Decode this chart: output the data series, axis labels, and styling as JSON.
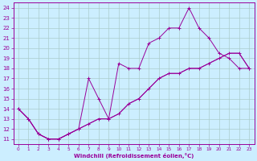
{
  "xlabel": "Windchill (Refroidissement éolien,°C)",
  "bg_color": "#cceeff",
  "line_color": "#990099",
  "grid_color": "#aacccc",
  "xlim": [
    -0.5,
    23.5
  ],
  "ylim": [
    10.5,
    24.5
  ],
  "xticks": [
    0,
    1,
    2,
    3,
    4,
    5,
    6,
    7,
    8,
    9,
    10,
    11,
    12,
    13,
    14,
    15,
    16,
    17,
    18,
    19,
    20,
    21,
    22,
    23
  ],
  "yticks": [
    11,
    12,
    13,
    14,
    15,
    16,
    17,
    18,
    19,
    20,
    21,
    22,
    23,
    24
  ],
  "line1_x": [
    0,
    1,
    2,
    3,
    4,
    5,
    6,
    7,
    8,
    9,
    10,
    11,
    12,
    13,
    14,
    15,
    16,
    17,
    18,
    19,
    20,
    21,
    22,
    23
  ],
  "line1_y": [
    14,
    13,
    11.5,
    11,
    11,
    11.5,
    12,
    17,
    15,
    13,
    18.5,
    18,
    18,
    20.5,
    21,
    22,
    22,
    24,
    22,
    21,
    19.5,
    19,
    18,
    18
  ],
  "line2_x": [
    0,
    1,
    2,
    3,
    4,
    5,
    6,
    7,
    8,
    9,
    10,
    11,
    12,
    13,
    14,
    15,
    16,
    17,
    18,
    19,
    20,
    21,
    22,
    23
  ],
  "line2_y": [
    14,
    13,
    11.5,
    11,
    11,
    11.5,
    12,
    12.5,
    13,
    13,
    13.5,
    14.5,
    15,
    16,
    17,
    17.5,
    17.5,
    18,
    18,
    18.5,
    19,
    19.5,
    19.5,
    18
  ],
  "line3_x": [
    0,
    1,
    2,
    3,
    4,
    5,
    6,
    7,
    8,
    9,
    10,
    11,
    12,
    13,
    14,
    15,
    16,
    17,
    18,
    19,
    20,
    21,
    22,
    23
  ],
  "line3_y": [
    14,
    13,
    11.5,
    11,
    11,
    11.5,
    12,
    12.5,
    13,
    13,
    13.5,
    14.5,
    15,
    16,
    17,
    17.5,
    17.5,
    18,
    18,
    18.5,
    19,
    19.5,
    19.5,
    18
  ]
}
